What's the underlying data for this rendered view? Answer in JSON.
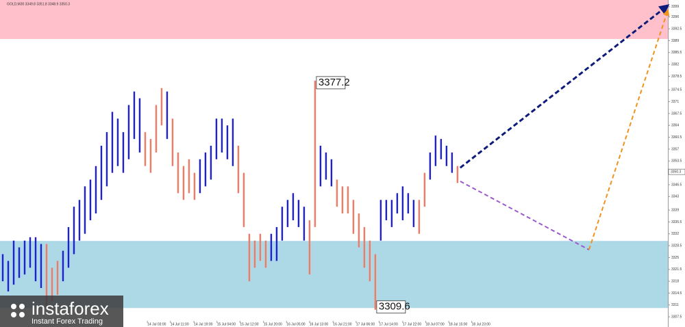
{
  "chart_data": {
    "type": "ohlc",
    "header": "GOLD,M30  3349.8 3351.8 3348.9 3350.3",
    "ylim": [
      3304.5,
      3401.0
    ],
    "yticks": [
      3307.5,
      3311.0,
      3314.5,
      3318.0,
      3321.5,
      3325.0,
      3328.5,
      3332.0,
      3335.5,
      3339.0,
      3343.0,
      3346.5,
      3353.5,
      3357.0,
      3360.5,
      3364.0,
      3367.5,
      3371.0,
      3374.5,
      3378.5,
      3382.0,
      3385.5,
      3389.0,
      3392.5,
      3396.0,
      3399.0
    ],
    "xlim": [
      -0.5,
      121.4
    ],
    "xticks": [
      {
        "value": 26.4,
        "label": "14 Jul 03:00"
      },
      {
        "value": 30.6,
        "label": "14 Jul 11:00"
      },
      {
        "value": 34.9,
        "label": "14 Jul 19:00"
      },
      {
        "value": 39.1,
        "label": "15 Jul 04:00"
      },
      {
        "value": 43.3,
        "label": "15 Jul 12:00"
      },
      {
        "value": 47.6,
        "label": "15 Jul 20:00"
      },
      {
        "value": 51.8,
        "label": "16 Jul 05:00"
      },
      {
        "value": 56.0,
        "label": "16 Jul 13:00"
      },
      {
        "value": 60.3,
        "label": "16 Jul 21:00"
      },
      {
        "value": 64.5,
        "label": "17 Jul 06:00"
      },
      {
        "value": 68.7,
        "label": "17 Jul 14:00"
      },
      {
        "value": 73.0,
        "label": "17 Jul 22:00"
      },
      {
        "value": 77.2,
        "label": "18 Jul 07:00"
      },
      {
        "value": 81.4,
        "label": "18 Jul 15:00"
      },
      {
        "value": 85.6,
        "label": "18 Jul 23:00"
      }
    ],
    "up_color": "#1f1fd6",
    "down_color": "#f07a64",
    "bars": {
      "low": [
        3318,
        3315,
        3317,
        3319,
        3320,
        3322,
        3318,
        3316,
        3310,
        3312,
        3314,
        3318,
        3322,
        3326,
        3330,
        3332,
        3336,
        3338,
        3342,
        3346,
        3350,
        3352,
        3350,
        3354,
        3360,
        3356,
        3352,
        3350,
        3356,
        3364,
        3360,
        3352,
        3344,
        3342,
        3344,
        3342,
        3344,
        3346,
        3348,
        3354,
        3356,
        3354,
        3352,
        3344,
        3334,
        3318,
        3322,
        3324,
        3322,
        3324,
        3324,
        3330,
        3334,
        3336,
        3334,
        3330,
        3320,
        3334,
        3346,
        3348,
        3346,
        3340,
        3338,
        3338,
        3332,
        3328,
        3322,
        3318,
        3309.6,
        3330,
        3336,
        3334,
        3338,
        3336,
        3338,
        3334,
        3332,
        3340,
        3348,
        3352,
        3354,
        3352,
        3350,
        3347
      ],
      "high": [
        3326,
        3324,
        3330,
        3328,
        3330,
        3331,
        3331,
        3329,
        3329,
        3322,
        3324,
        3327,
        3334,
        3340,
        3342,
        3346,
        3348,
        3352,
        3358,
        3362,
        3368,
        3366,
        3362,
        3370,
        3374,
        3372,
        3362,
        3360,
        3370,
        3375,
        3374,
        3366,
        3356,
        3352,
        3354,
        3350,
        3354,
        3356,
        3358,
        3366,
        3366,
        3364,
        3366,
        3358,
        3350,
        3332,
        3330,
        3332,
        3330,
        3332,
        3334,
        3340,
        3342,
        3344,
        3342,
        3340,
        3336,
        3377.2,
        3358,
        3356,
        3354,
        3348,
        3346,
        3346,
        3342,
        3338,
        3334,
        3330,
        3326,
        3342,
        3342,
        3342,
        3344,
        3346,
        3344,
        3342,
        3342,
        3350,
        3356,
        3361,
        3360,
        3358,
        3356,
        3352
      ],
      "rising": [
        true,
        true,
        true,
        true,
        true,
        true,
        true,
        true,
        false,
        false,
        false,
        true,
        true,
        true,
        true,
        true,
        true,
        true,
        true,
        true,
        true,
        true,
        true,
        true,
        true,
        true,
        false,
        false,
        false,
        false,
        true,
        false,
        false,
        false,
        false,
        false,
        true,
        true,
        true,
        true,
        true,
        true,
        true,
        false,
        false,
        false,
        false,
        false,
        false,
        true,
        true,
        true,
        true,
        true,
        true,
        true,
        false,
        false,
        true,
        true,
        true,
        false,
        false,
        false,
        false,
        false,
        false,
        false,
        false,
        true,
        true,
        true,
        true,
        true,
        true,
        true,
        false,
        false,
        true,
        true,
        true,
        true,
        true,
        false
      ]
    },
    "zones": [
      {
        "from": 3389.5,
        "to": 3401.0,
        "color": "#ffc0cb"
      },
      {
        "from": 3310.1,
        "to": 3329.9,
        "color": "#add8e6"
      }
    ],
    "annotations": [
      {
        "x": 57,
        "y": 3377.2,
        "side": "above"
      },
      {
        "x": 68,
        "y": 3309.6,
        "side": "below"
      }
    ],
    "current_price": 3350.3,
    "forecast": [
      {
        "x": [
          83.5,
          121.4
        ],
        "y": [
          3351.5,
          3399.4
        ],
        "color": "#0d1b7a",
        "arrow": true
      },
      {
        "x": [
          83.5,
          107
        ],
        "y": [
          3347.5,
          3327.3
        ],
        "color": "#9b59d0",
        "arrow": false
      },
      {
        "x": [
          107,
          121.4
        ],
        "y": [
          3327.3,
          3398.0
        ],
        "color": "#f0931e",
        "arrow": true
      }
    ]
  },
  "logo": {
    "name": "instaforex",
    "tagline": "Instant Forex Trading"
  }
}
